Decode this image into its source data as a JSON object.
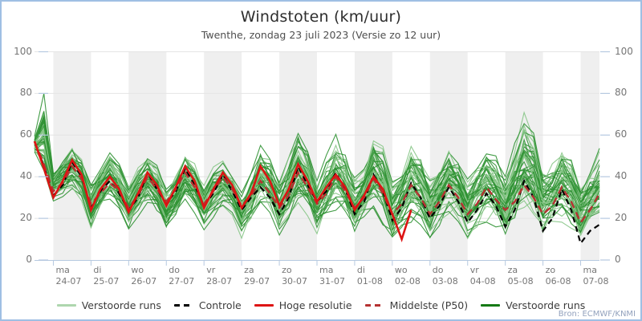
{
  "header": {
    "title": "Windstoten (km/uur)",
    "subtitle": "Twenthe, zondag 23 juli 2023 (Versie zo 12 uur)"
  },
  "footer": {
    "source": "Bron: ECMWF/KNMI"
  },
  "axes": {
    "y_ticks": [
      0,
      20,
      40,
      60,
      80,
      100
    ]
  },
  "legend": [
    {
      "label": "Verstoorde runs",
      "color": "#aed6ae",
      "dash": false
    },
    {
      "label": "Controle",
      "color": "#000000",
      "dash": true
    },
    {
      "label": "Hoge resolutie",
      "color": "#dd1414",
      "dash": false
    },
    {
      "label": "Middelste (P50)",
      "color": "#b53232",
      "dash": true
    },
    {
      "label": "Verstoorde runs",
      "color": "#157a15",
      "dash": false
    }
  ],
  "colors": {
    "frame_border": "#9fbfe3",
    "band_gray": "#efefef",
    "gridline": "#e4e4e4",
    "axis": "#b6c9e0",
    "member_light": "#86c586",
    "member_dark": "#2e9132",
    "control": "#000000",
    "hires": "#dd1414",
    "p50": "#b53232"
  },
  "chart_data": {
    "type": "line",
    "title": "Windstoten (km/uur)",
    "subtitle": "Twenthe, zondag 23 juli 2023 (Versie zo 12 uur)",
    "ylabel": "km/uur",
    "ylim": [
      0,
      100
    ],
    "x_unit": "hours since 2023-07-23 12:00",
    "start_hour": 0,
    "step_hours": 6,
    "total_hours": 360,
    "x_day_labels": [
      {
        "dow": "ma",
        "date": "24-07"
      },
      {
        "dow": "di",
        "date": "25-07"
      },
      {
        "dow": "wo",
        "date": "26-07"
      },
      {
        "dow": "do",
        "date": "27-07"
      },
      {
        "dow": "vr",
        "date": "28-07"
      },
      {
        "dow": "za",
        "date": "29-07"
      },
      {
        "dow": "zo",
        "date": "30-07"
      },
      {
        "dow": "ma",
        "date": "31-07"
      },
      {
        "dow": "di",
        "date": "01-08"
      },
      {
        "dow": "wo",
        "date": "02-08"
      },
      {
        "dow": "do",
        "date": "03-08"
      },
      {
        "dow": "vr",
        "date": "04-08"
      },
      {
        "dow": "za",
        "date": "05-08"
      },
      {
        "dow": "zo",
        "date": "06-08"
      },
      {
        "dow": "ma",
        "date": "07-08"
      }
    ],
    "series": [
      {
        "name": "Controle",
        "style": "dashed-black",
        "values": [
          57,
          45,
          31,
          36,
          47,
          40,
          25,
          33,
          38,
          32,
          24,
          30,
          42,
          34,
          27,
          33,
          44,
          36,
          26,
          32,
          41,
          33,
          24,
          30,
          35,
          30,
          22,
          30,
          45,
          36,
          28,
          33,
          42,
          34,
          22,
          28,
          41,
          33,
          19,
          25,
          37,
          30,
          20,
          26,
          35,
          28,
          18,
          24,
          32,
          26,
          16,
          24,
          38,
          30,
          14,
          20,
          34,
          24,
          8,
          14,
          17
        ]
      },
      {
        "name": "Middelste (P50)",
        "style": "dashed-darkred",
        "values": [
          57,
          46,
          33,
          37,
          45,
          39,
          27,
          32,
          37,
          33,
          25,
          31,
          40,
          34,
          28,
          34,
          42,
          35,
          27,
          33,
          40,
          34,
          26,
          31,
          38,
          32,
          25,
          31,
          42,
          35,
          27,
          32,
          40,
          33,
          25,
          30,
          39,
          32,
          22,
          27,
          36,
          30,
          22,
          28,
          36,
          30,
          22,
          27,
          35,
          29,
          24,
          28,
          36,
          30,
          22,
          26,
          35,
          28,
          18,
          24,
          32
        ]
      },
      {
        "name": "Hoge resolutie",
        "style": "solid-red",
        "end_hour": 240,
        "values": [
          57,
          44,
          30,
          38,
          48,
          41,
          24,
          34,
          40,
          34,
          23,
          32,
          42,
          36,
          26,
          35,
          45,
          38,
          25,
          34,
          42,
          36,
          25,
          32,
          45,
          38,
          26,
          34,
          46,
          38,
          28,
          35,
          41,
          35,
          24,
          31,
          40,
          34,
          22,
          10,
          24
        ]
      }
    ],
    "ensemble": {
      "name": "Verstoorde runs",
      "members": 50,
      "envelope_min": [
        50,
        40,
        28,
        30,
        32,
        28,
        15,
        22,
        25,
        20,
        12,
        20,
        25,
        20,
        12,
        18,
        26,
        22,
        14,
        20,
        24,
        20,
        10,
        16,
        22,
        18,
        10,
        18,
        25,
        20,
        12,
        18,
        22,
        18,
        10,
        16,
        20,
        16,
        6,
        12,
        16,
        14,
        8,
        14,
        18,
        16,
        8,
        14,
        16,
        14,
        6,
        12,
        18,
        16,
        8,
        12,
        14,
        12,
        5,
        10,
        12
      ],
      "envelope_max": [
        60,
        81,
        45,
        52,
        58,
        52,
        40,
        48,
        55,
        48,
        38,
        46,
        52,
        46,
        36,
        44,
        54,
        48,
        38,
        46,
        50,
        46,
        35,
        45,
        58,
        52,
        40,
        50,
        64,
        58,
        42,
        52,
        62,
        56,
        44,
        50,
        64,
        58,
        40,
        48,
        60,
        54,
        42,
        50,
        58,
        52,
        40,
        48,
        56,
        52,
        44,
        60,
        74,
        66,
        48,
        52,
        60,
        54,
        40,
        48,
        57
      ]
    }
  }
}
